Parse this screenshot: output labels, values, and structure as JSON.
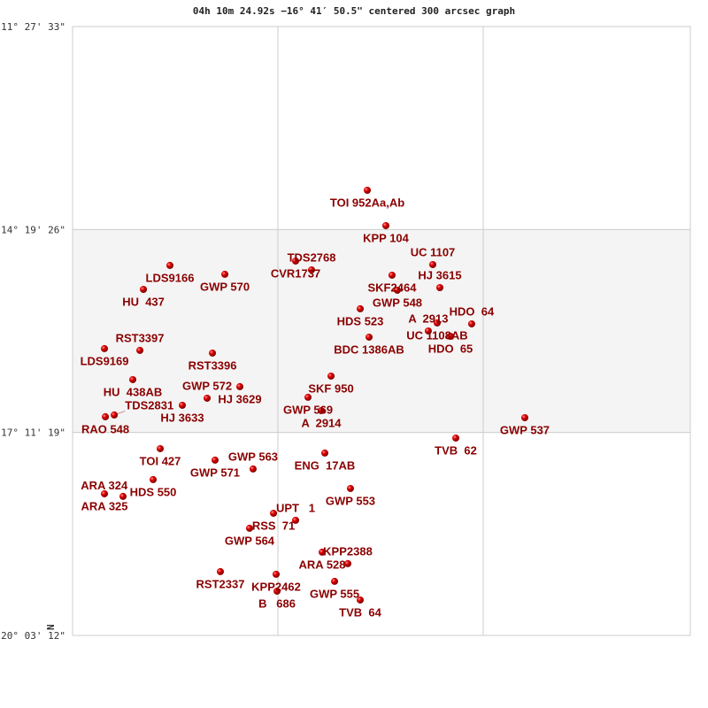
{
  "title": "04h 10m 24.92s −16° 41′ 50.5\" centered 300 arcsec graph",
  "north_label": "N",
  "colors": {
    "star": "#e00000",
    "label": "#8b0000",
    "band": "#f4f4f4",
    "grid": "#cccccc"
  },
  "chart_data": {
    "type": "scatter",
    "title": "04h 10m 24.92s −16° 41′ 50.5\" centered 300 arcsec graph",
    "y_ticks": [
      {
        "value": -11.4592,
        "label": "-11° 27' 33\""
      },
      {
        "value": -14.3239,
        "label": "-14° 19' 26\""
      },
      {
        "value": -17.1886,
        "label": "-17° 11' 19\""
      },
      {
        "value": -20.0533,
        "label": "-20° 03' 12\""
      }
    ],
    "ylim": [
      -20.0533,
      -11.4592
    ],
    "xlim": [
      -4.347,
      4.372
    ],
    "x_grid": [
      -1.449,
      1.449
    ],
    "shaded_band": [
      -17.1886,
      -14.3239
    ],
    "points": [
      {
        "name": "TOI 952Aa,Ab",
        "x": -0.187,
        "y": -13.77
      },
      {
        "name": "KPP 104",
        "x": 0.075,
        "y": -14.269
      },
      {
        "name": "CVR1737",
        "x": -1.199,
        "y": -14.769
      },
      {
        "name": "TDS2768",
        "x": -0.974,
        "y": -14.894
      },
      {
        "name": "LDS9166",
        "x": -2.973,
        "y": -14.831
      },
      {
        "name": "GWP 570",
        "x": -2.198,
        "y": -14.956
      },
      {
        "name": "HU  437",
        "x": -3.347,
        "y": -15.169
      },
      {
        "name": "SKF2464",
        "x": 0.162,
        "y": -14.969
      },
      {
        "name": "UC 1107",
        "x": 0.737,
        "y": -14.819
      },
      {
        "name": "GWP 548",
        "x": 0.237,
        "y": -15.181
      },
      {
        "name": "HJ 3615",
        "x": 0.837,
        "y": -15.144
      },
      {
        "name": "HDS 523",
        "x": -0.287,
        "y": -15.443
      },
      {
        "name": "UC 1108AB",
        "x": 0.799,
        "y": -15.643
      },
      {
        "name": "A  2913",
        "x": 0.674,
        "y": -15.756
      },
      {
        "name": "HDO  64",
        "x": 1.286,
        "y": -15.656
      },
      {
        "name": "HDO  65",
        "x": 0.987,
        "y": -15.831
      },
      {
        "name": "BDC 1386AB",
        "x": -0.162,
        "y": -15.843
      },
      {
        "name": "LDS9169",
        "x": -3.897,
        "y": -16.005
      },
      {
        "name": "RST3397",
        "x": -3.397,
        "y": -16.03
      },
      {
        "name": "RST3396",
        "x": -2.373,
        "y": -16.068
      },
      {
        "name": "HU  438AB",
        "x": -3.497,
        "y": -16.443
      },
      {
        "name": "SKF 950",
        "x": -0.699,
        "y": -16.393
      },
      {
        "name": "HJ 3629",
        "x": -1.986,
        "y": -16.542
      },
      {
        "name": "GWP 572",
        "x": -2.448,
        "y": -16.705
      },
      {
        "name": "HJ 3633",
        "x": -2.798,
        "y": -16.805
      },
      {
        "name": "GWP 569",
        "x": -1.024,
        "y": -16.692
      },
      {
        "name": "A  2914",
        "x": -0.837,
        "y": -16.88
      },
      {
        "name": "RAO 548",
        "x": -3.884,
        "y": -16.967
      },
      {
        "name": "TDS2831",
        "x": -3.759,
        "y": -16.942
      },
      {
        "name": "GWP 537",
        "x": 2.036,
        "y": -16.98
      },
      {
        "name": "TVB  62",
        "x": 1.062,
        "y": -17.267
      },
      {
        "name": "TOI 427",
        "x": -3.11,
        "y": -17.417
      },
      {
        "name": "ENG  17AB",
        "x": -0.787,
        "y": -17.479
      },
      {
        "name": "GWP 571",
        "x": -2.336,
        "y": -17.579
      },
      {
        "name": "GWP 563",
        "x": -1.799,
        "y": -17.704
      },
      {
        "name": "HDS 550",
        "x": -3.21,
        "y": -17.854
      },
      {
        "name": "GWP 553",
        "x": -0.425,
        "y": -17.979
      },
      {
        "name": "ARA 325",
        "x": -3.897,
        "y": -18.054
      },
      {
        "name": "ARA 324",
        "x": -3.635,
        "y": -18.091
      },
      {
        "name": "RSS  71",
        "x": -1.511,
        "y": -18.329
      },
      {
        "name": "UPT   1",
        "x": -1.199,
        "y": -18.428
      },
      {
        "name": "GWP 564",
        "x": -1.849,
        "y": -18.541
      },
      {
        "name": "ARA 528",
        "x": -0.824,
        "y": -18.878
      },
      {
        "name": "KPP2388",
        "x": -0.462,
        "y": -19.04
      },
      {
        "name": "RST2337",
        "x": -2.261,
        "y": -19.153
      },
      {
        "name": "KPP2462",
        "x": -1.474,
        "y": -19.19
      },
      {
        "name": "GWP 555",
        "x": -0.649,
        "y": -19.29
      },
      {
        "name": "B   686",
        "x": -1.461,
        "y": -19.428
      },
      {
        "name": "TVB  64",
        "x": -0.287,
        "y": -19.553
      }
    ]
  }
}
